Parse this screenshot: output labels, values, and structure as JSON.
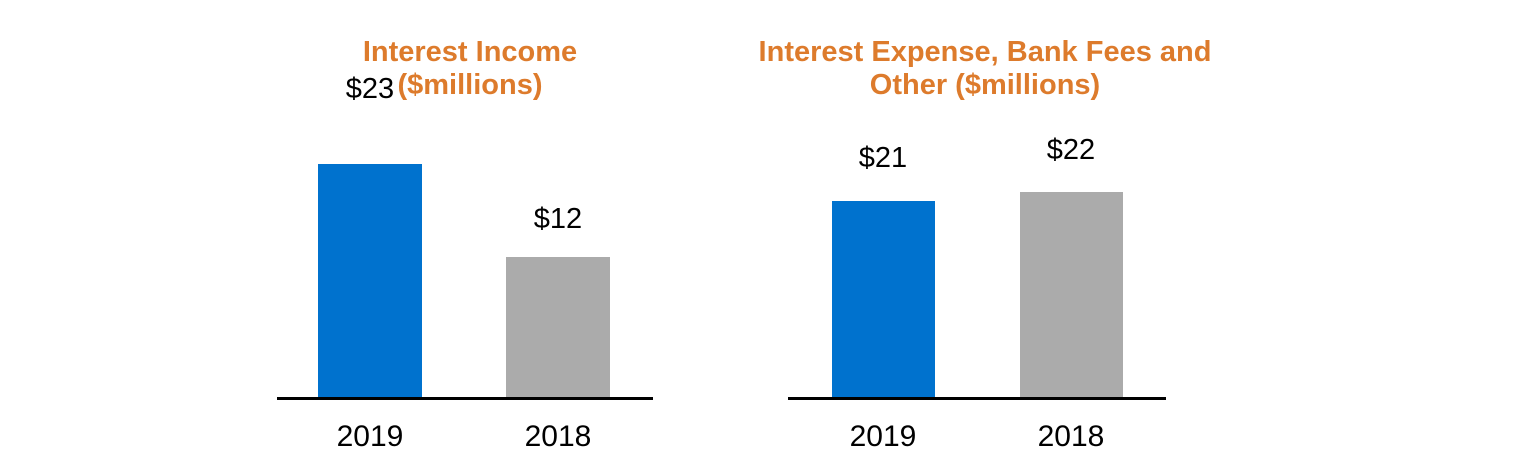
{
  "page": {
    "background": "#ffffff"
  },
  "colors": {
    "title": "#DD7B2C",
    "axis": "#000000",
    "label": "#000000",
    "bar_2019": "#0072CE",
    "bar_2018": "#ABABAB"
  },
  "chart_data": [
    {
      "type": "bar",
      "title": "Interest Income ($millions)",
      "title_lines": [
        "Interest Income",
        "($millions)"
      ],
      "categories": [
        "2019",
        "2018"
      ],
      "values": [
        23,
        12
      ],
      "value_labels": [
        "$23",
        "$12"
      ],
      "bar_colors": [
        "#0072CE",
        "#ABABAB"
      ],
      "xlabel": "",
      "ylabel": "",
      "ylim": [
        0,
        25
      ],
      "grid": false,
      "legend": false
    },
    {
      "type": "bar",
      "title": "Interest Expense, Bank Fees and Other ($millions)",
      "title_lines": [
        "Interest Expense, Bank Fees and",
        "Other ($millions)"
      ],
      "categories": [
        "2019",
        "2018"
      ],
      "values": [
        21,
        22
      ],
      "value_labels": [
        "$21",
        "$22"
      ],
      "bar_colors": [
        "#0072CE",
        "#ABABAB"
      ],
      "xlabel": "",
      "ylabel": "",
      "ylim": [
        0,
        25
      ],
      "grid": false,
      "legend": false
    }
  ]
}
